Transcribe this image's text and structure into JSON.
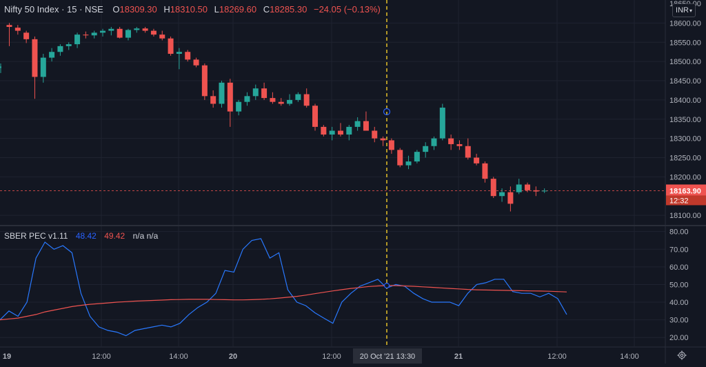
{
  "header": {
    "symbol": "Nifty 50 Index · 15 · NSE",
    "open_label": "O",
    "open": "18309.30",
    "high_label": "H",
    "high": "18310.50",
    "low_label": "L",
    "low": "18269.60",
    "close_label": "C",
    "close": "18285.30",
    "change": "−24.05 (−0.13%)"
  },
  "indicator": {
    "name": "SBER PEC v1.11",
    "value_blue": "48.42",
    "value_red": "49.42",
    "extra": "n/a n/a"
  },
  "currency_button": "INR",
  "price_axis": {
    "ticks": [
      "18600.00",
      "18550.00",
      "18500.00",
      "18450.00",
      "18400.00",
      "18350.00",
      "18300.00",
      "18250.00",
      "18200.00",
      "18100.00"
    ],
    "top_partial": "18650.00",
    "last_price": "18163.90",
    "countdown": "12:32"
  },
  "indicator_axis": {
    "ticks": [
      "80.00",
      "70.00",
      "60.00",
      "50.00",
      "40.00",
      "30.00",
      "20.00"
    ]
  },
  "time_axis": {
    "labels": [
      "19",
      "12:00",
      "14:00",
      "20",
      "12:00",
      "21",
      "12:00",
      "14:00"
    ],
    "crosshair_label": "20 Oct '21   13:30"
  },
  "colors": {
    "background": "#131722",
    "grid": "#1f2330",
    "up": "#26a69a",
    "down": "#ef5350",
    "crosshair": "#e6c229",
    "blue_line": "#2979ff",
    "red_line": "#ef5350",
    "axis_text": "#b2b5be"
  },
  "chart_data": [
    {
      "type": "candlestick",
      "title": "Nifty 50 Index · 15 · NSE",
      "ylim": [
        18075,
        18660
      ],
      "candles": [
        {
          "o": 18595,
          "h": 18600,
          "l": 18540,
          "c": 18590
        },
        {
          "o": 18588,
          "h": 18595,
          "l": 18570,
          "c": 18580
        },
        {
          "o": 18575,
          "h": 18580,
          "l": 18548,
          "c": 18558
        },
        {
          "o": 18558,
          "h": 18565,
          "l": 18403,
          "c": 18460
        },
        {
          "o": 18460,
          "h": 18520,
          "l": 18445,
          "c": 18510
        },
        {
          "o": 18510,
          "h": 18535,
          "l": 18500,
          "c": 18525
        },
        {
          "o": 18525,
          "h": 18545,
          "l": 18515,
          "c": 18540
        },
        {
          "o": 18540,
          "h": 18550,
          "l": 18530,
          "c": 18545
        },
        {
          "o": 18545,
          "h": 18575,
          "l": 18535,
          "c": 18570
        },
        {
          "o": 18570,
          "h": 18578,
          "l": 18560,
          "c": 18568
        },
        {
          "o": 18568,
          "h": 18580,
          "l": 18560,
          "c": 18575
        },
        {
          "o": 18575,
          "h": 18585,
          "l": 18565,
          "c": 18580
        },
        {
          "o": 18580,
          "h": 18590,
          "l": 18568,
          "c": 18585
        },
        {
          "o": 18585,
          "h": 18590,
          "l": 18560,
          "c": 18562
        },
        {
          "o": 18562,
          "h": 18585,
          "l": 18555,
          "c": 18582
        },
        {
          "o": 18582,
          "h": 18590,
          "l": 18575,
          "c": 18586
        },
        {
          "o": 18586,
          "h": 18590,
          "l": 18575,
          "c": 18580
        },
        {
          "o": 18580,
          "h": 18585,
          "l": 18565,
          "c": 18570
        },
        {
          "o": 18570,
          "h": 18580,
          "l": 18555,
          "c": 18560
        },
        {
          "o": 18560,
          "h": 18565,
          "l": 18515,
          "c": 18520
        },
        {
          "o": 18520,
          "h": 18535,
          "l": 18480,
          "c": 18525
        },
        {
          "o": 18525,
          "h": 18530,
          "l": 18500,
          "c": 18505
        },
        {
          "o": 18505,
          "h": 18510,
          "l": 18485,
          "c": 18490
        },
        {
          "o": 18490,
          "h": 18495,
          "l": 18400,
          "c": 18410
        },
        {
          "o": 18410,
          "h": 18425,
          "l": 18380,
          "c": 18390
        },
        {
          "o": 18390,
          "h": 18450,
          "l": 18380,
          "c": 18445
        },
        {
          "o": 18445,
          "h": 18455,
          "l": 18330,
          "c": 18370
        },
        {
          "o": 18370,
          "h": 18400,
          "l": 18360,
          "c": 18395
        },
        {
          "o": 18395,
          "h": 18420,
          "l": 18385,
          "c": 18410
        },
        {
          "o": 18410,
          "h": 18440,
          "l": 18400,
          "c": 18430
        },
        {
          "o": 18430,
          "h": 18445,
          "l": 18400,
          "c": 18405
        },
        {
          "o": 18405,
          "h": 18420,
          "l": 18390,
          "c": 18395
        },
        {
          "o": 18395,
          "h": 18405,
          "l": 18385,
          "c": 18390
        },
        {
          "o": 18390,
          "h": 18415,
          "l": 18385,
          "c": 18400
        },
        {
          "o": 18400,
          "h": 18420,
          "l": 18395,
          "c": 18415
        },
        {
          "o": 18415,
          "h": 18430,
          "l": 18380,
          "c": 18385
        },
        {
          "o": 18385,
          "h": 18390,
          "l": 18320,
          "c": 18330
        },
        {
          "o": 18330,
          "h": 18335,
          "l": 18305,
          "c": 18310
        },
        {
          "o": 18310,
          "h": 18330,
          "l": 18295,
          "c": 18320
        },
        {
          "o": 18320,
          "h": 18340,
          "l": 18305,
          "c": 18310
        },
        {
          "o": 18310,
          "h": 18335,
          "l": 18295,
          "c": 18330
        },
        {
          "o": 18330,
          "h": 18355,
          "l": 18320,
          "c": 18345
        },
        {
          "o": 18345,
          "h": 18370,
          "l": 18325,
          "c": 18320
        },
        {
          "o": 18320,
          "h": 18330,
          "l": 18290,
          "c": 18300
        },
        {
          "o": 18300,
          "h": 18305,
          "l": 18280,
          "c": 18295
        },
        {
          "o": 18295,
          "h": 18300,
          "l": 18260,
          "c": 18270
        },
        {
          "o": 18270,
          "h": 18275,
          "l": 18225,
          "c": 18230
        },
        {
          "o": 18230,
          "h": 18255,
          "l": 18220,
          "c": 18240
        },
        {
          "o": 18240,
          "h": 18270,
          "l": 18235,
          "c": 18265
        },
        {
          "o": 18265,
          "h": 18290,
          "l": 18250,
          "c": 18280
        },
        {
          "o": 18280,
          "h": 18305,
          "l": 18270,
          "c": 18300
        },
        {
          "o": 18300,
          "h": 18390,
          "l": 18295,
          "c": 18380
        },
        {
          "o": 18300,
          "h": 18310,
          "l": 18270,
          "c": 18285
        },
        {
          "o": 18285,
          "h": 18295,
          "l": 18270,
          "c": 18280
        },
        {
          "o": 18280,
          "h": 18300,
          "l": 18245,
          "c": 18250
        },
        {
          "o": 18250,
          "h": 18260,
          "l": 18230,
          "c": 18235
        },
        {
          "o": 18235,
          "h": 18240,
          "l": 18185,
          "c": 18195
        },
        {
          "o": 18195,
          "h": 18200,
          "l": 18145,
          "c": 18150
        },
        {
          "o": 18150,
          "h": 18170,
          "l": 18135,
          "c": 18160
        },
        {
          "o": 18160,
          "h": 18175,
          "l": 18110,
          "c": 18130
        },
        {
          "o": 18160,
          "h": 18195,
          "l": 18155,
          "c": 18180
        },
        {
          "o": 18180,
          "h": 18185,
          "l": 18160,
          "c": 18165
        },
        {
          "o": 18165,
          "h": 18175,
          "l": 18150,
          "c": 18162
        },
        {
          "o": 18163,
          "h": 18170,
          "l": 18158,
          "c": 18164
        }
      ]
    },
    {
      "type": "line",
      "title": "SBER PEC v1.11",
      "ylim": [
        15,
        83
      ],
      "series": [
        {
          "color": "#2979ff",
          "values": [
            30,
            35,
            32,
            40,
            65,
            74,
            70,
            72,
            68,
            45,
            32,
            26,
            24,
            23,
            21,
            24,
            25,
            26,
            27,
            26,
            28,
            33,
            37,
            40,
            45,
            58,
            57,
            70,
            75,
            76,
            65,
            68,
            47,
            40,
            38,
            34,
            31,
            28,
            40,
            45,
            49,
            51,
            53,
            48,
            50,
            49,
            45,
            42,
            40,
            40,
            40,
            38,
            45,
            50,
            51,
            53,
            53,
            46,
            45,
            45,
            43,
            45,
            42,
            33
          ]
        },
        {
          "color": "#ef5350",
          "values": [
            30,
            30.5,
            31,
            32,
            33,
            34.5,
            35.5,
            36.5,
            37.5,
            38.2,
            38.8,
            39.2,
            39.6,
            40,
            40.3,
            40.6,
            40.8,
            41,
            41.2,
            41.4,
            41.5,
            41.6,
            41.6,
            41.6,
            41.5,
            41.4,
            41.3,
            41.3,
            41.4,
            41.6,
            41.9,
            42.3,
            42.8,
            43.3,
            44,
            44.8,
            45.6,
            46.4,
            47.1,
            47.8,
            48.3,
            48.9,
            49.2,
            49.4,
            49.4,
            49.2,
            49,
            48.7,
            48.4,
            48.1,
            47.8,
            47.5,
            47.2,
            47,
            46.9,
            46.8,
            46.7,
            46.6,
            46.5,
            46.4,
            46.3,
            46.2,
            46,
            45.8
          ]
        }
      ]
    }
  ]
}
